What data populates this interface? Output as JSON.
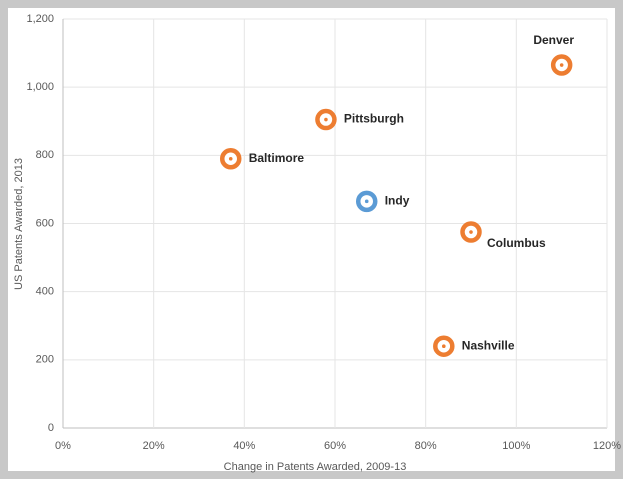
{
  "chart_data": {
    "type": "scatter",
    "xlabel": "Change in Patents Awarded, 2009-13",
    "ylabel": "US Patents Awarded, 2013",
    "labels": [
      "Denver",
      "Pittsburgh",
      "Baltimore",
      "Indy",
      "Columbus",
      "Nashville"
    ],
    "x": [
      110,
      58,
      37,
      67,
      90,
      84
    ],
    "values": [
      1065,
      905,
      790,
      665,
      575,
      240
    ],
    "colors": [
      "#ed7d31",
      "#ed7d31",
      "#ed7d31",
      "#5b9bd5",
      "#ed7d31",
      "#ed7d31"
    ],
    "xlim": [
      0,
      120
    ],
    "xticks": [
      {
        "value": 0,
        "label": "0%"
      },
      {
        "value": 20,
        "label": "20%"
      },
      {
        "value": 40,
        "label": "40%"
      },
      {
        "value": 60,
        "label": "60%"
      },
      {
        "value": 80,
        "label": "80%"
      },
      {
        "value": 100,
        "label": "100%"
      },
      {
        "value": 120,
        "label": "120%"
      }
    ],
    "ylim": [
      0,
      1200
    ],
    "yticks": [
      0,
      200,
      400,
      600,
      800,
      {
        "value": 1000,
        "label": "1,000"
      },
      {
        "value": 1200,
        "label": "1,200"
      }
    ],
    "grid": true
  }
}
